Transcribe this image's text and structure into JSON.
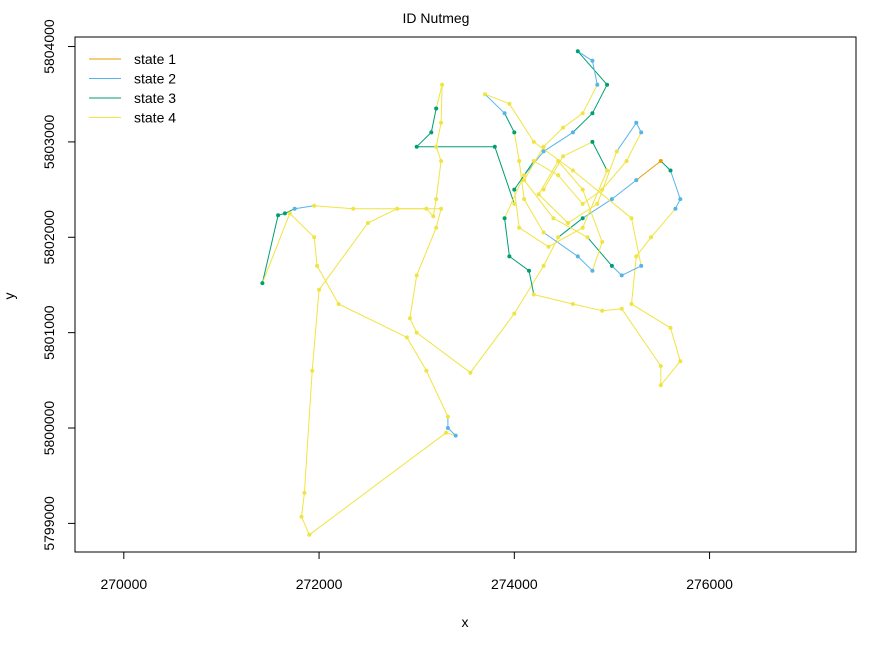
{
  "chart_data": {
    "type": "line",
    "title": "ID Nutmeg",
    "xlabel": "x",
    "ylabel": "y",
    "xlim": [
      269500,
      277500
    ],
    "ylim": [
      5798700,
      5804100
    ],
    "x_ticks": [
      270000,
      272000,
      274000,
      276000
    ],
    "x_tick_labels": [
      "270000",
      "272000",
      "274000",
      "276000"
    ],
    "y_ticks": [
      5799000,
      5800000,
      5801000,
      5802000,
      5803000,
      5804000
    ],
    "y_tick_labels": [
      "5799000",
      "5800000",
      "5801000",
      "5802000",
      "5803000",
      "5804000"
    ],
    "grid": false,
    "legend_position": "top-left",
    "series": [
      {
        "name": "state 1",
        "color": "#E69F00"
      },
      {
        "name": "state 2",
        "color": "#56B4E9"
      },
      {
        "name": "state 3",
        "color": "#009E73"
      },
      {
        "name": "state 4",
        "color": "#F0E442"
      }
    ],
    "track": [
      [
        274000,
        5802350,
        4
      ],
      [
        273800,
        5802950,
        3
      ],
      [
        273000,
        5802950,
        3
      ],
      [
        273150,
        5803100,
        3
      ],
      [
        273200,
        5803350,
        3
      ],
      [
        273260,
        5803600,
        4
      ],
      [
        273250,
        5803200,
        4
      ],
      [
        273200,
        5802950,
        4
      ],
      [
        273250,
        5802800,
        4
      ],
      [
        273200,
        5802400,
        4
      ],
      [
        273170,
        5802220,
        4
      ],
      [
        273100,
        5802300,
        4
      ],
      [
        272350,
        5802300,
        4
      ],
      [
        271950,
        5802330,
        4
      ],
      [
        271750,
        5802300,
        2
      ],
      [
        271650,
        5802250,
        3
      ],
      [
        271580,
        5802230,
        3
      ],
      [
        271420,
        5801520,
        3
      ],
      [
        271700,
        5802250,
        4
      ],
      [
        271950,
        5802000,
        4
      ],
      [
        271980,
        5801700,
        4
      ],
      [
        272200,
        5801300,
        4
      ],
      [
        272900,
        5800950,
        4
      ],
      [
        273100,
        5800600,
        4
      ],
      [
        273320,
        5800120,
        4
      ],
      [
        273320,
        5800000,
        2
      ],
      [
        273400,
        5799920,
        2
      ],
      [
        273300,
        5799950,
        4
      ],
      [
        271900,
        5798880,
        4
      ],
      [
        271820,
        5799070,
        4
      ],
      [
        271850,
        5799320,
        4
      ],
      [
        271930,
        5800600,
        4
      ],
      [
        272000,
        5801450,
        4
      ],
      [
        272500,
        5802150,
        4
      ],
      [
        272800,
        5802300,
        4
      ],
      [
        273250,
        5802300,
        4
      ],
      [
        273200,
        5802100,
        4
      ],
      [
        273000,
        5801600,
        4
      ],
      [
        272930,
        5801150,
        4
      ],
      [
        273000,
        5801000,
        4
      ],
      [
        273550,
        5800580,
        4
      ],
      [
        274000,
        5801200,
        4
      ],
      [
        274300,
        5801700,
        4
      ],
      [
        274450,
        5802000,
        4
      ],
      [
        274700,
        5802200,
        3
      ],
      [
        275000,
        5802400,
        2
      ],
      [
        275250,
        5802600,
        2
      ],
      [
        275500,
        5802800,
        1
      ],
      [
        275600,
        5802700,
        3
      ],
      [
        275700,
        5802400,
        2
      ],
      [
        275650,
        5802300,
        2
      ],
      [
        275400,
        5802000,
        4
      ],
      [
        275250,
        5801800,
        4
      ],
      [
        275200,
        5801300,
        4
      ],
      [
        275600,
        5801050,
        4
      ],
      [
        275700,
        5800700,
        4
      ],
      [
        275500,
        5800450,
        4
      ],
      [
        275500,
        5800650,
        4
      ],
      [
        275100,
        5801250,
        4
      ],
      [
        274900,
        5801230,
        4
      ],
      [
        274600,
        5801300,
        4
      ],
      [
        274200,
        5801400,
        4
      ],
      [
        274150,
        5801650,
        3
      ],
      [
        273950,
        5801800,
        3
      ],
      [
        273900,
        5802200,
        3
      ],
      [
        274100,
        5802650,
        4
      ],
      [
        274300,
        5802900,
        2
      ],
      [
        274600,
        5803100,
        2
      ],
      [
        274800,
        5803300,
        3
      ],
      [
        274950,
        5803600,
        3
      ],
      [
        274650,
        5803950,
        3
      ],
      [
        274800,
        5803850,
        2
      ],
      [
        274850,
        5803600,
        2
      ],
      [
        274700,
        5803300,
        4
      ],
      [
        274500,
        5803150,
        4
      ],
      [
        274300,
        5802950,
        4
      ],
      [
        274100,
        5802600,
        4
      ],
      [
        274400,
        5802200,
        4
      ],
      [
        274750,
        5802000,
        4
      ],
      [
        275000,
        5801700,
        3
      ],
      [
        275100,
        5801600,
        2
      ],
      [
        275300,
        5801700,
        2
      ],
      [
        275200,
        5802200,
        4
      ],
      [
        274600,
        5802700,
        4
      ],
      [
        274200,
        5803000,
        4
      ],
      [
        273950,
        5803400,
        4
      ],
      [
        273700,
        5803500,
        4
      ],
      [
        273900,
        5803300,
        2
      ],
      [
        274000,
        5803100,
        3
      ],
      [
        274050,
        5802800,
        4
      ],
      [
        274100,
        5802400,
        4
      ],
      [
        274300,
        5802050,
        4
      ],
      [
        274650,
        5801800,
        2
      ],
      [
        274800,
        5801650,
        2
      ],
      [
        274900,
        5801950,
        4
      ],
      [
        274700,
        5802500,
        4
      ],
      [
        274450,
        5802800,
        4
      ],
      [
        274250,
        5802450,
        4
      ],
      [
        274550,
        5802150,
        4
      ],
      [
        274850,
        5802350,
        4
      ],
      [
        275050,
        5802900,
        4
      ],
      [
        275250,
        5803200,
        2
      ],
      [
        275300,
        5803100,
        2
      ],
      [
        275150,
        5802800,
        4
      ],
      [
        274900,
        5802500,
        4
      ],
      [
        274700,
        5802350,
        4
      ],
      [
        274450,
        5802650,
        4
      ],
      [
        274200,
        5802800,
        4
      ],
      [
        274000,
        5802500,
        3
      ],
      [
        274050,
        5802100,
        4
      ],
      [
        274350,
        5801900,
        4
      ],
      [
        274700,
        5802100,
        4
      ],
      [
        274950,
        5802700,
        4
      ],
      [
        274800,
        5803000,
        3
      ],
      [
        274500,
        5802850,
        4
      ],
      [
        274300,
        5802500,
        4
      ]
    ]
  }
}
